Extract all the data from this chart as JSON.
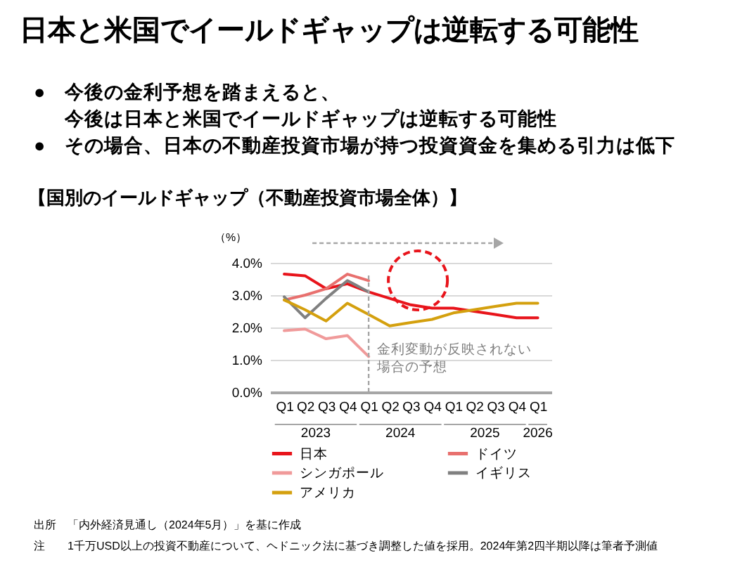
{
  "chart_data": {
    "type": "line",
    "title": "日本と米国でイールドギャップは逆転する可能性",
    "subtitle": "【国別のイールドギャップ（不動産投資市場全体）】",
    "ylabel": "（%）",
    "x": [
      "2023-01",
      "2023-04",
      "2023-07",
      "2023-10",
      "2024-01",
      "2024-04",
      "2024-07",
      "2024-10",
      "2025-01",
      "2025-04",
      "2025-07",
      "2025-10",
      "2026-01"
    ],
    "xlim": [
      "2022-11",
      "2026-03"
    ],
    "xticks": [
      {
        "value": "2023-01",
        "label": "Q1"
      },
      {
        "value": "2023-04",
        "label": "Q2"
      },
      {
        "value": "2023-07",
        "label": "Q3"
      },
      {
        "value": "2023-10",
        "label": "Q4"
      },
      {
        "value": "2024-01",
        "label": "Q1"
      },
      {
        "value": "2024-04",
        "label": "Q2"
      },
      {
        "value": "2024-07",
        "label": "Q3"
      },
      {
        "value": "2024-10",
        "label": "Q4"
      },
      {
        "value": "2025-01",
        "label": "Q1"
      },
      {
        "value": "2025-04",
        "label": "Q2"
      },
      {
        "value": "2025-07",
        "label": "Q3"
      },
      {
        "value": "2025-10",
        "label": "Q4"
      },
      {
        "value": "2026-01",
        "label": "Q1"
      }
    ],
    "series": [
      {
        "name": "日本",
        "color": "#e8141b",
        "values": [
          3.65,
          3.6,
          3.2,
          3.35,
          3.1,
          2.9,
          2.7,
          2.6,
          2.6,
          2.5,
          2.4,
          2.3,
          2.3
        ]
      },
      {
        "name": "ドイツ",
        "color": "#e8706e",
        "values": [
          2.85,
          3.0,
          3.2,
          3.65,
          3.45,
          null,
          null,
          null,
          null,
          null,
          null,
          null,
          null
        ]
      },
      {
        "name": "シンガポール",
        "color": "#f09a9a",
        "values": [
          1.9,
          1.95,
          1.65,
          1.75,
          1.1,
          null,
          null,
          null,
          null,
          null,
          null,
          null,
          null
        ]
      },
      {
        "name": "イギリス",
        "color": "#808080",
        "values": [
          2.95,
          2.3,
          2.9,
          3.45,
          3.1,
          null,
          null,
          null,
          null,
          null,
          null,
          null,
          null
        ]
      },
      {
        "name": "アメリカ",
        "color": "#d4a00e",
        "values": [
          2.85,
          2.55,
          2.2,
          2.75,
          2.4,
          2.05,
          2.15,
          2.25,
          2.45,
          2.55,
          2.65,
          2.75,
          2.75
        ]
      }
    ],
    "ylim": [
      0,
      4
    ],
    "yticks": [
      {
        "value": 0,
        "label": "0.0%"
      },
      {
        "value": 1,
        "label": "1.0%"
      },
      {
        "value": 2,
        "label": "2.0%"
      },
      {
        "value": 3,
        "label": "3.0%"
      },
      {
        "value": 4,
        "label": "4.0%"
      }
    ],
    "ref_lines": [
      {
        "axis": "x",
        "value": "2024-01",
        "line_style": "dashed",
        "color": "#a6a6a6"
      }
    ],
    "grid": "y",
    "legend": "bottom",
    "annotations": [
      "●　今後の金利予想を踏まえると、",
      "今後は日本と米国でイールドギャップは逆転する可能性",
      "●　その場合、日本の不動産投資市場が持つ投資資金を集める引力は低下",
      "金利変動が反映されない",
      "場合の予想",
      "2023",
      "2024",
      "2025",
      "2026",
      "出所　「内外経済見通し（2024年5月）」を基に作成",
      "注　　1千万USD以上の投資不動産について、ヘドニック法に基づき調整した値を採用。2024年第2四半期以降は筆者予測値"
    ]
  }
}
